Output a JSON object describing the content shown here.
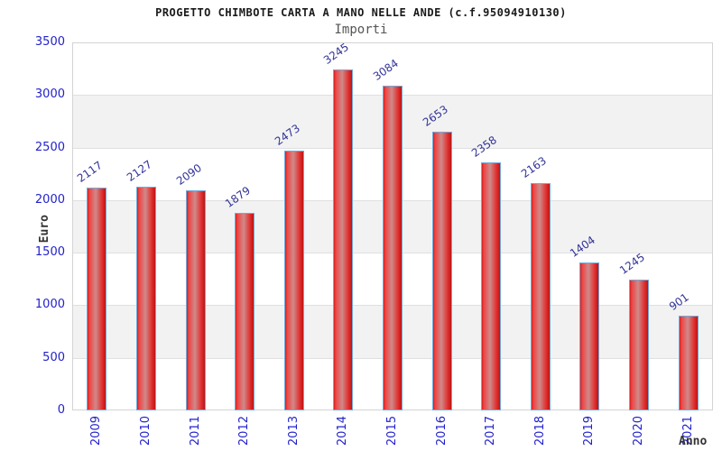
{
  "chart_data": {
    "type": "bar",
    "title": "PROGETTO CHIMBOTE CARTA A MANO NELLE ANDE (c.f.95094910130)",
    "subtitle": "Importi",
    "xlabel": "Anno",
    "ylabel": "Euro",
    "categories": [
      "2009",
      "2010",
      "2011",
      "2012",
      "2013",
      "2014",
      "2015",
      "2016",
      "2017",
      "2018",
      "2019",
      "2020",
      "2021"
    ],
    "values": [
      2117,
      2127,
      2090,
      1879,
      2473,
      3245,
      3084,
      2653,
      2358,
      2163,
      1404,
      1245,
      901
    ],
    "ylim": [
      0,
      3500
    ],
    "yticks": [
      0,
      500,
      1000,
      1500,
      2000,
      2500,
      3000,
      3500
    ],
    "grid": true,
    "band_alternating": true,
    "legend": "none",
    "value_labels_rotated": true,
    "colors": {
      "bar_fill_stops": [
        "#d41f1f",
        "#ee4343",
        "#cf8a8a",
        "#e23030",
        "#b81616"
      ],
      "bar_border": "#74a9d8",
      "value_label": "#333399",
      "tick_label": "#2222cc",
      "axis_title": "#333333",
      "band": "#f2f2f2",
      "grid_line": "#e0e0e0",
      "plot_border": "#d4d4d4",
      "title": "#1a1a1a",
      "subtitle": "#555555"
    }
  }
}
